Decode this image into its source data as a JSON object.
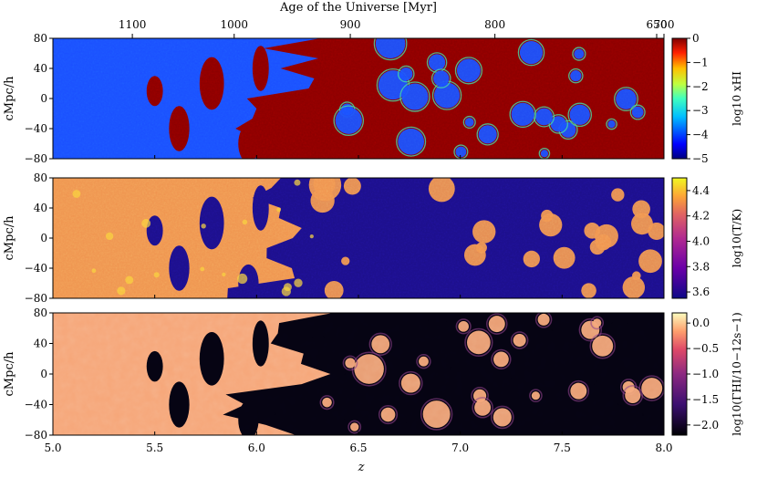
{
  "top_axis": {
    "title": "Age of the Universe [Myr]",
    "ticks": [
      {
        "label": "1100",
        "z": 5.39
      },
      {
        "label": "1000",
        "z": 5.89
      },
      {
        "label": "900",
        "z": 6.46
      },
      {
        "label": "800",
        "z": 7.17
      },
      {
        "label": "700",
        "z": 8.0
      },
      {
        "label": "650",
        "z": 8.5
      }
    ]
  },
  "x_axis": {
    "title": "z",
    "range": [
      5.0,
      8.0
    ],
    "ticks": [
      "5.0",
      "5.5",
      "6.0",
      "6.5",
      "7.0",
      "7.5",
      "8.0"
    ]
  },
  "y_axis": {
    "title": "cMpc/h",
    "range": [
      -80,
      80
    ],
    "ticks": [
      "80",
      "40",
      "0",
      "−40",
      "−80"
    ]
  },
  "panels": [
    {
      "id": "xHI",
      "quantity": "neutral hydrogen fraction",
      "colorbar_label": "log10 xHI",
      "colormap": "jet",
      "colors": {
        "ionized": "#1a4fff",
        "neutral": "#8b0000",
        "front": "#3fd8a0"
      },
      "cbar_range": [
        -5,
        0
      ],
      "cbar_ticks": [
        "0",
        "−1",
        "−2",
        "−3",
        "−4",
        "−5"
      ]
    },
    {
      "id": "T",
      "quantity": "temperature",
      "colorbar_label": "log10(T/K)",
      "colormap": "plasma",
      "colors": {
        "ionized": "#f0944f",
        "neutral": "#1c0f8a",
        "hot": "#f9d33c"
      },
      "cbar_range": [
        3.55,
        4.5
      ],
      "cbar_ticks": [
        "4.4",
        "4.2",
        "4.0",
        "3.8",
        "3.6"
      ]
    },
    {
      "id": "Gamma",
      "quantity": "photoionization rate",
      "colorbar_label": "log10(ΓHI/10−12s−1)",
      "colormap": "magma",
      "colors": {
        "ionized": "#f6a77a",
        "neutral": "#050312",
        "edge": "#8a3f85"
      },
      "cbar_range": [
        -2.2,
        0.2
      ],
      "cbar_ticks": [
        "0.0",
        "−0.5",
        "−1.0",
        "−1.5",
        "−2.0"
      ]
    }
  ]
}
